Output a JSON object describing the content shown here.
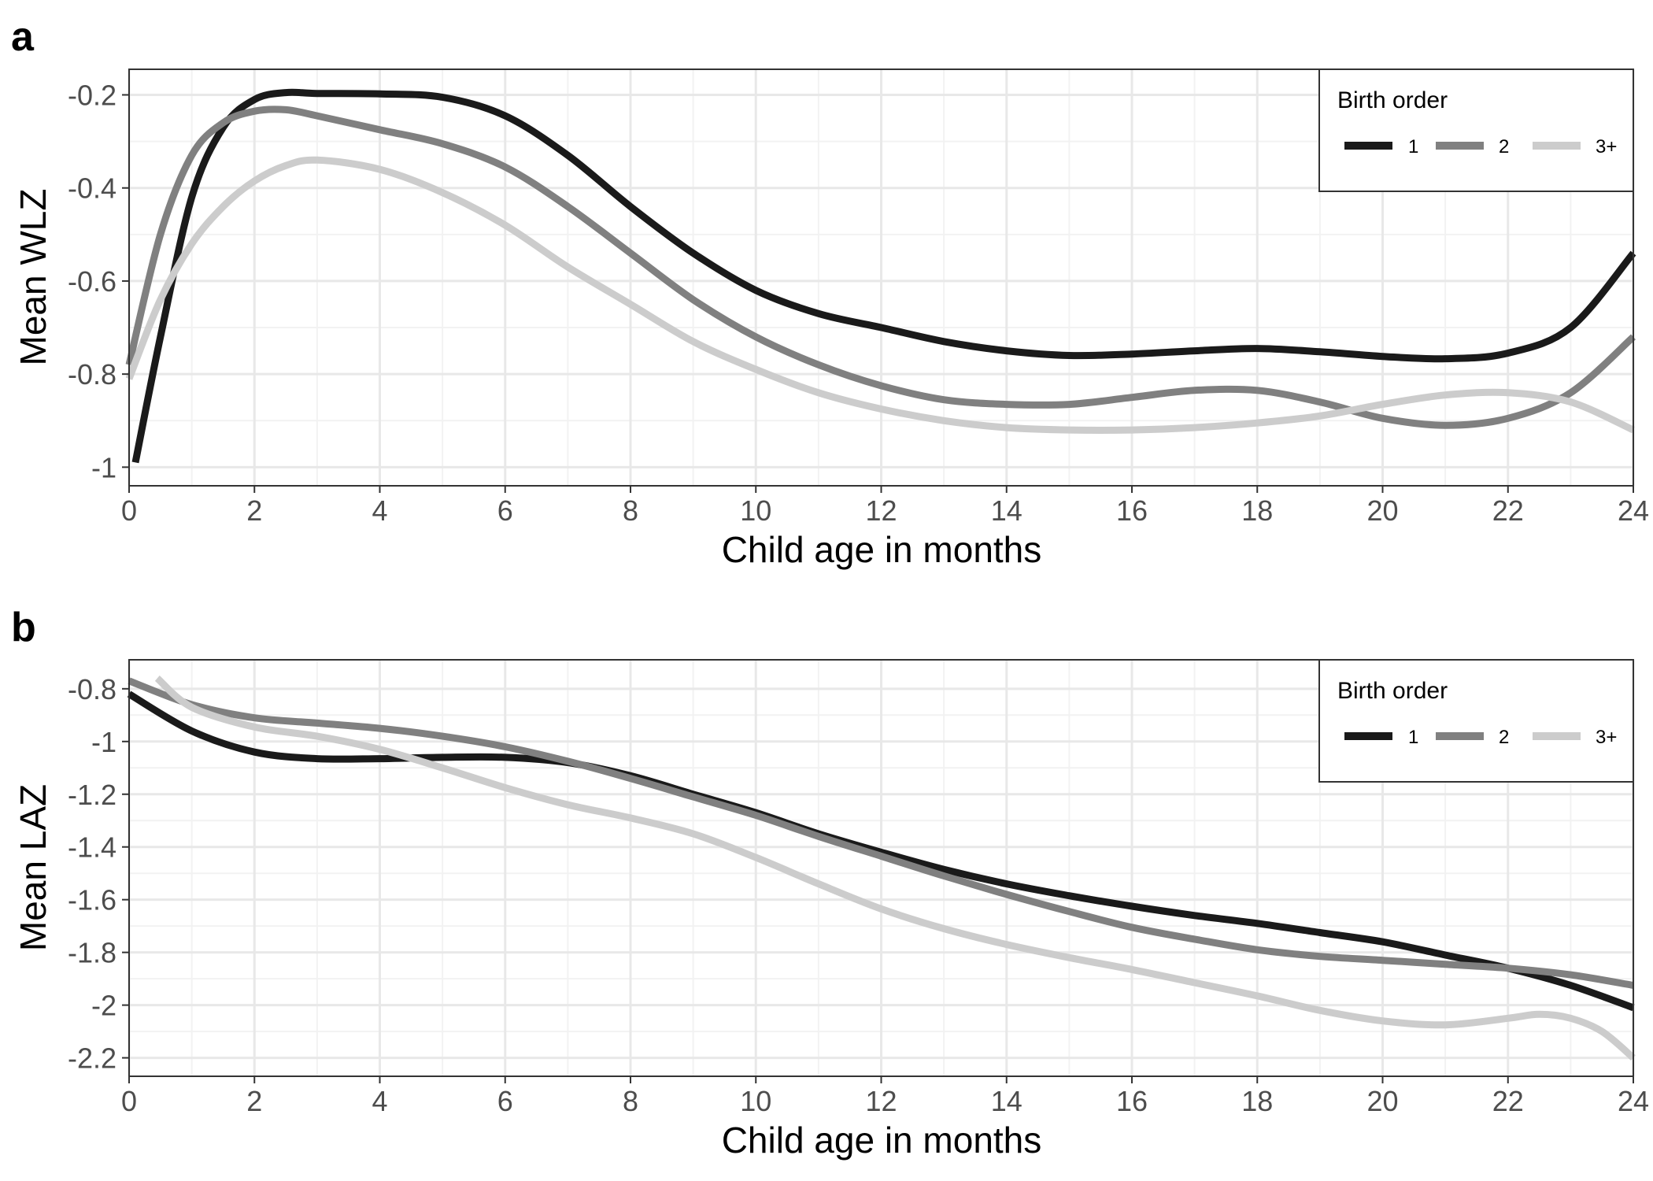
{
  "chart_data": [
    {
      "panel_label": "a",
      "type": "line",
      "xlabel": "Child age in months",
      "ylabel": "Mean WLZ",
      "xlim": [
        0,
        24
      ],
      "ylim": [
        -1.04,
        -0.145
      ],
      "x_ticks": [
        0,
        2,
        4,
        6,
        8,
        10,
        12,
        14,
        16,
        18,
        20,
        22,
        24
      ],
      "x_tick_labels": [
        "0",
        "2",
        "4",
        "6",
        "8",
        "10",
        "12",
        "14",
        "16",
        "18",
        "20",
        "22",
        "24"
      ],
      "y_ticks": [
        -1,
        -0.8,
        -0.6,
        -0.4,
        -0.2
      ],
      "y_tick_labels": [
        "-1",
        "-0.8",
        "-0.6",
        "-0.4",
        "-0.2"
      ],
      "grid": true,
      "legend": {
        "title": "Birth order",
        "position": "top-right",
        "entries": [
          "1",
          "2",
          "3+"
        ]
      },
      "series": [
        {
          "name": "1",
          "color": "#1a1a1a",
          "x": [
            0.1,
            0.5,
            1,
            1.5,
            2,
            2.5,
            3,
            4,
            5,
            6,
            7,
            8,
            9,
            10,
            11,
            12,
            13,
            14,
            15,
            16,
            17,
            18,
            19,
            20,
            21,
            22,
            23,
            24
          ],
          "y": [
            -0.99,
            -0.72,
            -0.42,
            -0.27,
            -0.21,
            -0.195,
            -0.197,
            -0.198,
            -0.205,
            -0.245,
            -0.33,
            -0.44,
            -0.54,
            -0.62,
            -0.67,
            -0.7,
            -0.73,
            -0.75,
            -0.76,
            -0.757,
            -0.75,
            -0.745,
            -0.752,
            -0.762,
            -0.767,
            -0.755,
            -0.7,
            -0.54
          ]
        },
        {
          "name": "2",
          "color": "#808080",
          "x": [
            0,
            0.5,
            1,
            1.5,
            2,
            2.5,
            3,
            4,
            5,
            6,
            7,
            8,
            9,
            10,
            11,
            12,
            13,
            14,
            15,
            16,
            17,
            18,
            19,
            20,
            21,
            22,
            23,
            24
          ],
          "y": [
            -0.78,
            -0.5,
            -0.33,
            -0.26,
            -0.235,
            -0.232,
            -0.245,
            -0.275,
            -0.305,
            -0.355,
            -0.44,
            -0.54,
            -0.64,
            -0.72,
            -0.78,
            -0.825,
            -0.855,
            -0.865,
            -0.865,
            -0.85,
            -0.835,
            -0.835,
            -0.86,
            -0.895,
            -0.91,
            -0.895,
            -0.84,
            -0.72
          ]
        },
        {
          "name": "3+",
          "color": "#cccccc",
          "x": [
            0,
            0.5,
            1,
            1.5,
            2,
            2.5,
            3,
            4,
            5,
            6,
            7,
            8,
            9,
            10,
            11,
            12,
            13,
            14,
            15,
            16,
            17,
            18,
            19,
            20,
            21,
            22,
            23,
            24
          ],
          "y": [
            -0.81,
            -0.64,
            -0.52,
            -0.44,
            -0.385,
            -0.352,
            -0.34,
            -0.36,
            -0.41,
            -0.48,
            -0.57,
            -0.65,
            -0.73,
            -0.79,
            -0.84,
            -0.875,
            -0.9,
            -0.915,
            -0.92,
            -0.92,
            -0.915,
            -0.905,
            -0.89,
            -0.865,
            -0.845,
            -0.84,
            -0.86,
            -0.92
          ]
        }
      ]
    },
    {
      "panel_label": "b",
      "type": "line",
      "xlabel": "Child age in months",
      "ylabel": "Mean LAZ",
      "xlim": [
        0,
        24
      ],
      "ylim": [
        -2.27,
        -0.69
      ],
      "x_ticks": [
        0,
        2,
        4,
        6,
        8,
        10,
        12,
        14,
        16,
        18,
        20,
        22,
        24
      ],
      "x_tick_labels": [
        "0",
        "2",
        "4",
        "6",
        "8",
        "10",
        "12",
        "14",
        "16",
        "18",
        "20",
        "22",
        "24"
      ],
      "y_ticks": [
        -2.2,
        -2,
        -1.8,
        -1.6,
        -1.4,
        -1.2,
        -1,
        -0.8
      ],
      "y_tick_labels": [
        "-2.2",
        "-2",
        "-1.8",
        "-1.6",
        "-1.4",
        "-1.2",
        "-1",
        "-0.8"
      ],
      "grid": true,
      "legend": {
        "title": "Birth order",
        "position": "top-right",
        "entries": [
          "1",
          "2",
          "3+"
        ]
      },
      "series": [
        {
          "name": "1",
          "color": "#1a1a1a",
          "x": [
            0,
            1,
            2,
            3,
            4,
            5,
            6,
            7,
            8,
            9,
            10,
            11,
            12,
            13,
            14,
            15,
            16,
            17,
            18,
            19,
            20,
            21,
            22,
            23,
            24
          ],
          "y": [
            -0.82,
            -0.96,
            -1.04,
            -1.065,
            -1.065,
            -1.06,
            -1.06,
            -1.08,
            -1.13,
            -1.2,
            -1.27,
            -1.35,
            -1.42,
            -1.485,
            -1.54,
            -1.585,
            -1.625,
            -1.66,
            -1.69,
            -1.725,
            -1.76,
            -1.81,
            -1.86,
            -1.925,
            -2.01
          ]
        },
        {
          "name": "2",
          "color": "#808080",
          "x": [
            0,
            1,
            2,
            3,
            4,
            5,
            6,
            7,
            8,
            9,
            10,
            11,
            12,
            13,
            14,
            15,
            16,
            17,
            18,
            19,
            20,
            21,
            22,
            23,
            24
          ],
          "y": [
            -0.77,
            -0.86,
            -0.91,
            -0.93,
            -0.95,
            -0.98,
            -1.02,
            -1.075,
            -1.14,
            -1.21,
            -1.28,
            -1.36,
            -1.435,
            -1.51,
            -1.58,
            -1.645,
            -1.705,
            -1.75,
            -1.79,
            -1.815,
            -1.83,
            -1.845,
            -1.86,
            -1.885,
            -1.925
          ]
        },
        {
          "name": "3+",
          "color": "#cccccc",
          "x": [
            0.45,
            1,
            2,
            3,
            4,
            5,
            6,
            7,
            8,
            9,
            10,
            11,
            12,
            13,
            14,
            15,
            16,
            17,
            18,
            19,
            20,
            21,
            22,
            22.5,
            23,
            23.5,
            24
          ],
          "y": [
            -0.76,
            -0.87,
            -0.945,
            -0.98,
            -1.03,
            -1.1,
            -1.175,
            -1.24,
            -1.29,
            -1.35,
            -1.44,
            -1.54,
            -1.635,
            -1.71,
            -1.77,
            -1.82,
            -1.865,
            -1.915,
            -1.965,
            -2.02,
            -2.06,
            -2.075,
            -2.05,
            -2.035,
            -2.05,
            -2.1,
            -2.2
          ]
        }
      ]
    }
  ]
}
